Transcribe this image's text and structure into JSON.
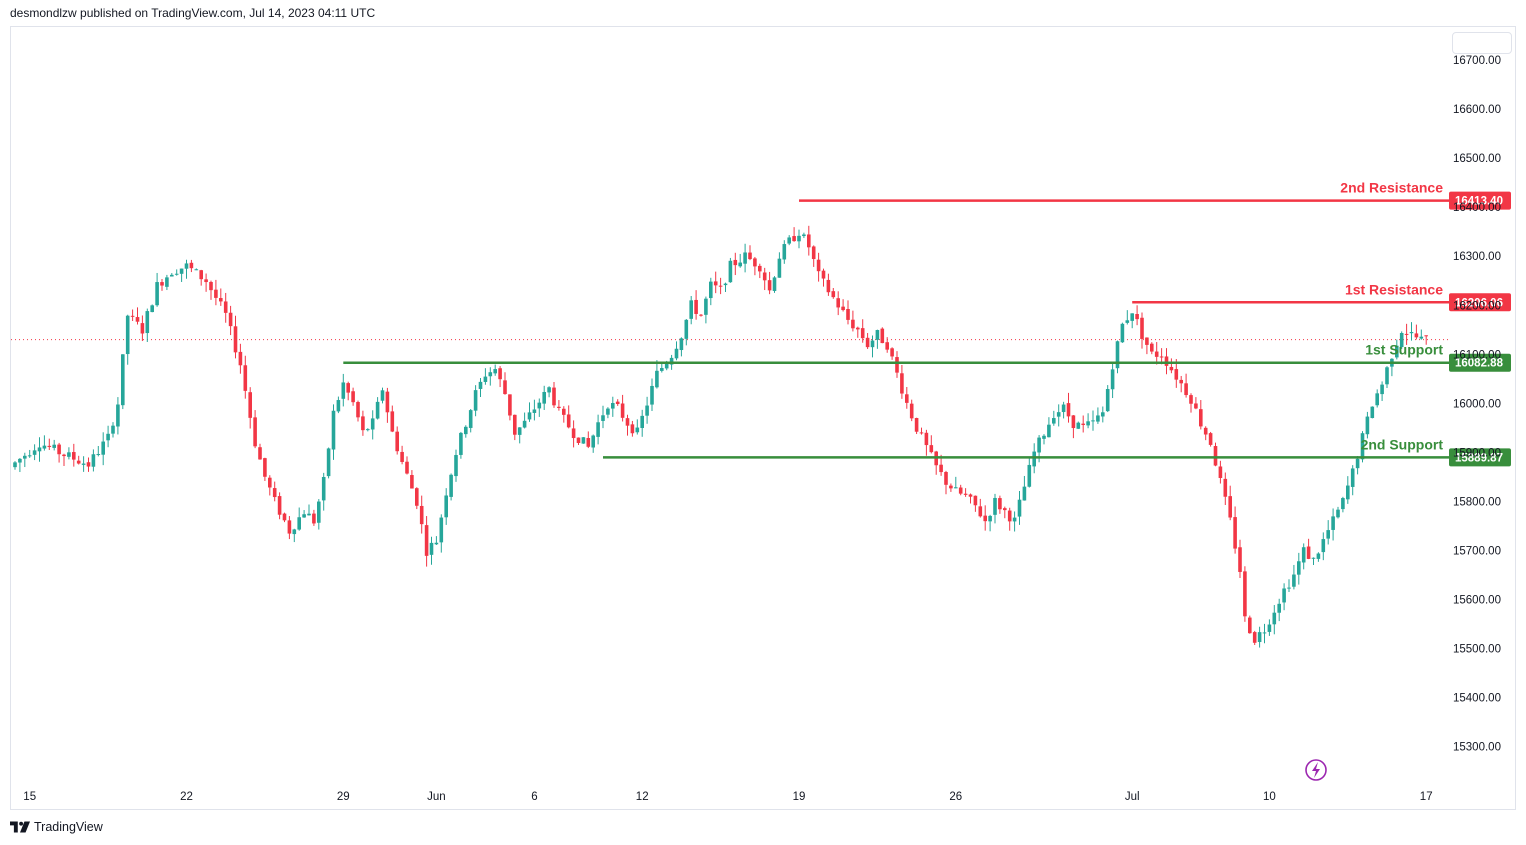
{
  "header": {
    "publisher_text": "desmondlzw published on TradingView.com, Jul 14, 2023 04:11 UTC"
  },
  "footer": {
    "brand": "TradingView"
  },
  "colors": {
    "up": "#26a69a",
    "down": "#f23645",
    "resistance": "#f23645",
    "support": "#388e3c",
    "text": "#131722",
    "price_line": "#f23645",
    "bolt": "#9c27b0"
  },
  "icons": {
    "lightning": "lightning-icon",
    "logo": "tradingview-logo-icon"
  },
  "chart_data": {
    "type": "candlestick",
    "y_ticks": [
      "15300.00",
      "15400.00",
      "15500.00",
      "15600.00",
      "15700.00",
      "15800.00",
      "15900.00",
      "16000.00",
      "16100.00",
      "16200.00",
      "16300.00",
      "16400.00",
      "16500.00",
      "16600.00",
      "16700.00"
    ],
    "y_tick_values": [
      15300,
      15400,
      15500,
      15600,
      15700,
      15800,
      15900,
      16000,
      16100,
      16200,
      16300,
      16400,
      16500,
      16600,
      16700
    ],
    "ylim": [
      15230,
      16790
    ],
    "x_ticks": [
      "15",
      "22",
      "29",
      "Jun",
      "6",
      "12",
      "19",
      "26",
      "Jul",
      "10",
      "17"
    ],
    "x_tick_index": [
      3,
      35,
      67,
      86,
      106,
      128,
      160,
      192,
      228,
      256,
      288
    ],
    "n_bars": 300,
    "last_price": 16130,
    "levels": [
      {
        "id": "r2",
        "label": "2nd Resistance",
        "value": 16413.4,
        "badge": "16413.40",
        "start_index": 160,
        "type": "resistance"
      },
      {
        "id": "r1",
        "label": "1st Resistance",
        "value": 16206.06,
        "badge": "16206.06",
        "start_index": 228,
        "type": "resistance"
      },
      {
        "id": "s1",
        "label": "1st Support",
        "value": 16082.88,
        "badge": "16082.88",
        "start_index": 67,
        "type": "support"
      },
      {
        "id": "s2",
        "label": "2nd Support",
        "value": 15889.87,
        "badge": "15889.87",
        "start_index": 120,
        "type": "support"
      }
    ],
    "anchors": [
      [
        0,
        15870
      ],
      [
        6,
        15920
      ],
      [
        10,
        15900
      ],
      [
        16,
        15875
      ],
      [
        20,
        15930
      ],
      [
        22,
        16000
      ],
      [
        24,
        16180
      ],
      [
        27,
        16150
      ],
      [
        30,
        16240
      ],
      [
        33,
        16270
      ],
      [
        36,
        16280
      ],
      [
        40,
        16250
      ],
      [
        44,
        16180
      ],
      [
        47,
        16080
      ],
      [
        50,
        15920
      ],
      [
        52,
        15850
      ],
      [
        54,
        15800
      ],
      [
        57,
        15740
      ],
      [
        60,
        15780
      ],
      [
        62,
        15760
      ],
      [
        64,
        15840
      ],
      [
        66,
        15980
      ],
      [
        68,
        16040
      ],
      [
        70,
        16000
      ],
      [
        72,
        15940
      ],
      [
        74,
        15960
      ],
      [
        76,
        16030
      ],
      [
        78,
        15940
      ],
      [
        80,
        15880
      ],
      [
        83,
        15800
      ],
      [
        85,
        15700
      ],
      [
        87,
        15720
      ],
      [
        89,
        15820
      ],
      [
        91,
        15900
      ],
      [
        93,
        15960
      ],
      [
        95,
        16020
      ],
      [
        97,
        16060
      ],
      [
        99,
        16070
      ],
      [
        101,
        16020
      ],
      [
        103,
        15940
      ],
      [
        105,
        15960
      ],
      [
        107,
        15990
      ],
      [
        110,
        16030
      ],
      [
        112,
        15980
      ],
      [
        115,
        15940
      ],
      [
        118,
        15910
      ],
      [
        120,
        15960
      ],
      [
        122,
        16000
      ],
      [
        124,
        15990
      ],
      [
        126,
        15960
      ],
      [
        128,
        15940
      ],
      [
        130,
        16000
      ],
      [
        132,
        16060
      ],
      [
        135,
        16100
      ],
      [
        137,
        16140
      ],
      [
        139,
        16200
      ],
      [
        141,
        16180
      ],
      [
        143,
        16240
      ],
      [
        145,
        16230
      ],
      [
        147,
        16280
      ],
      [
        150,
        16300
      ],
      [
        153,
        16280
      ],
      [
        155,
        16230
      ],
      [
        157,
        16300
      ],
      [
        159,
        16330
      ],
      [
        161,
        16350
      ],
      [
        163,
        16320
      ],
      [
        165,
        16260
      ],
      [
        167,
        16230
      ],
      [
        169,
        16200
      ],
      [
        171,
        16170
      ],
      [
        173,
        16150
      ],
      [
        175,
        16120
      ],
      [
        177,
        16140
      ],
      [
        179,
        16120
      ],
      [
        181,
        16060
      ],
      [
        183,
        16000
      ],
      [
        185,
        15950
      ],
      [
        187,
        15910
      ],
      [
        189,
        15870
      ],
      [
        191,
        15840
      ],
      [
        193,
        15820
      ],
      [
        195,
        15810
      ],
      [
        197,
        15790
      ],
      [
        199,
        15760
      ],
      [
        201,
        15800
      ],
      [
        203,
        15780
      ],
      [
        205,
        15760
      ],
      [
        207,
        15830
      ],
      [
        209,
        15900
      ],
      [
        211,
        15940
      ],
      [
        213,
        15980
      ],
      [
        215,
        15990
      ],
      [
        217,
        15960
      ],
      [
        219,
        15950
      ],
      [
        221,
        15960
      ],
      [
        223,
        15980
      ],
      [
        225,
        16080
      ],
      [
        227,
        16160
      ],
      [
        229,
        16190
      ],
      [
        231,
        16140
      ],
      [
        233,
        16100
      ],
      [
        235,
        16100
      ],
      [
        237,
        16070
      ],
      [
        239,
        16040
      ],
      [
        241,
        16010
      ],
      [
        243,
        15960
      ],
      [
        245,
        15920
      ],
      [
        247,
        15840
      ],
      [
        249,
        15760
      ],
      [
        251,
        15660
      ],
      [
        252,
        15560
      ],
      [
        254,
        15520
      ],
      [
        256,
        15540
      ],
      [
        258,
        15580
      ],
      [
        260,
        15620
      ],
      [
        262,
        15650
      ],
      [
        264,
        15700
      ],
      [
        266,
        15680
      ],
      [
        268,
        15720
      ],
      [
        270,
        15760
      ],
      [
        272,
        15800
      ],
      [
        274,
        15860
      ],
      [
        276,
        15930
      ],
      [
        278,
        16000
      ],
      [
        280,
        16040
      ],
      [
        282,
        16100
      ],
      [
        284,
        16150
      ],
      [
        286,
        16140
      ],
      [
        288,
        16130
      ]
    ]
  }
}
